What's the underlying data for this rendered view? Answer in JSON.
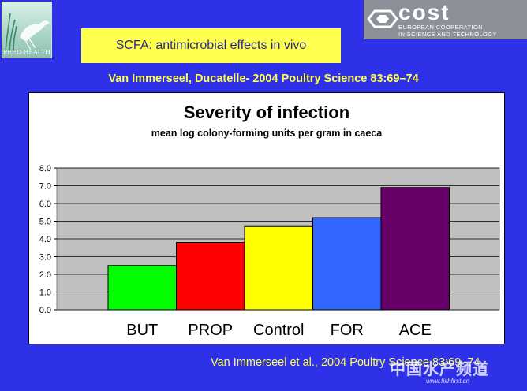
{
  "logos": {
    "left_text": "FEED-HEALTH",
    "right_word": "cost",
    "right_sub_1": "EUROPEAN COOPERATION",
    "right_sub_2": "IN SCIENCE AND TECHNOLOGY"
  },
  "slide": {
    "title": "SCFA: antimicrobial effects in vivo",
    "citation_top": "Van Immerseel, Ducatelle- 2004 Poultry Science 83:69–74",
    "citation_bottom": "Van Immerseel et al., 2004 Poultry Science 83:69–74"
  },
  "watermark": {
    "text": "中国水产频道",
    "url": "www.fishfirst.cn"
  },
  "colors": {
    "background": "#2f31e8",
    "highlight": "#ffff4d",
    "plot_area": "#c0c0c0"
  },
  "chart_data": {
    "type": "bar",
    "title": "Severity of infection",
    "subtitle": "mean log colony-forming units per gram in caeca",
    "xlabel": "",
    "ylabel": "",
    "categories": [
      "BUT",
      "PROP",
      "Control",
      "FOR",
      "ACE"
    ],
    "values": [
      2.5,
      3.8,
      4.7,
      5.2,
      6.9
    ],
    "bar_colors": [
      "#00ff00",
      "#ff0000",
      "#ffff00",
      "#3366ff",
      "#660066"
    ],
    "ylim": [
      0,
      8
    ],
    "yticks": [
      "0.0",
      "1.0",
      "2.0",
      "3.0",
      "4.0",
      "5.0",
      "6.0",
      "7.0",
      "8.0"
    ],
    "grid": true,
    "legend": "none"
  }
}
